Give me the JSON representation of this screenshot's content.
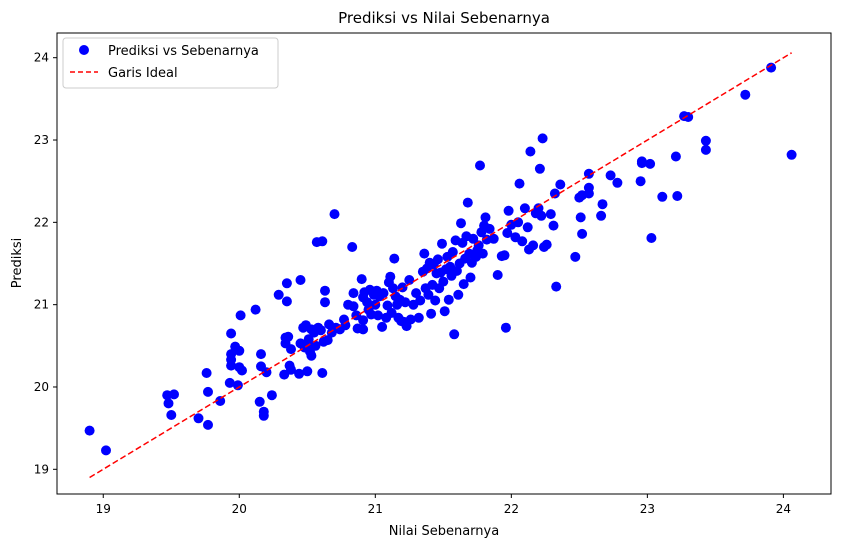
{
  "chart_data": {
    "type": "scatter",
    "title": "Prediksi vs Nilai Sebenarnya",
    "xlabel": "Nilai Sebenarnya",
    "ylabel": "Prediksi",
    "xlim": [
      18.66,
      24.35
    ],
    "ylim": [
      18.7,
      24.3
    ],
    "xticks": [
      "19",
      "20",
      "21",
      "22",
      "23",
      "24"
    ],
    "yticks": [
      "19",
      "20",
      "21",
      "22",
      "23",
      "24"
    ],
    "grid": false,
    "legend_position": "top-left",
    "series": [
      {
        "name": "Prediksi vs Sebenarnya",
        "kind": "scatter",
        "color": "#0000ff",
        "points": [
          [
            18.9,
            19.47
          ],
          [
            19.02,
            19.23
          ],
          [
            19.47,
            19.9
          ],
          [
            19.48,
            19.8
          ],
          [
            19.5,
            19.66
          ],
          [
            19.52,
            19.91
          ],
          [
            19.7,
            19.62
          ],
          [
            19.76,
            20.17
          ],
          [
            19.77,
            19.94
          ],
          [
            19.77,
            19.54
          ],
          [
            19.86,
            19.83
          ],
          [
            19.93,
            20.05
          ],
          [
            19.94,
            20.26
          ],
          [
            19.94,
            20.33
          ],
          [
            19.94,
            20.4
          ],
          [
            19.94,
            20.65
          ],
          [
            19.97,
            20.49
          ],
          [
            19.99,
            20.02
          ],
          [
            20.0,
            20.24
          ],
          [
            20.0,
            20.44
          ],
          [
            20.01,
            20.87
          ],
          [
            20.02,
            20.2
          ],
          [
            20.12,
            20.94
          ],
          [
            20.15,
            19.82
          ],
          [
            20.16,
            20.4
          ],
          [
            20.16,
            20.25
          ],
          [
            20.18,
            19.65
          ],
          [
            20.18,
            19.7
          ],
          [
            20.2,
            20.18
          ],
          [
            20.24,
            19.9
          ],
          [
            20.29,
            21.12
          ],
          [
            20.33,
            20.15
          ],
          [
            20.34,
            20.6
          ],
          [
            20.34,
            20.53
          ],
          [
            20.35,
            21.26
          ],
          [
            20.35,
            21.04
          ],
          [
            20.36,
            20.61
          ],
          [
            20.37,
            20.26
          ],
          [
            20.38,
            20.46
          ],
          [
            20.38,
            20.21
          ],
          [
            20.44,
            20.16
          ],
          [
            20.45,
            20.53
          ],
          [
            20.45,
            21.3
          ],
          [
            20.47,
            20.72
          ],
          [
            20.48,
            20.48
          ],
          [
            20.49,
            20.75
          ],
          [
            20.5,
            20.53
          ],
          [
            20.5,
            20.19
          ],
          [
            20.51,
            20.58
          ],
          [
            20.52,
            20.43
          ],
          [
            20.53,
            20.7
          ],
          [
            20.53,
            20.38
          ],
          [
            20.55,
            20.66
          ],
          [
            20.56,
            20.5
          ],
          [
            20.57,
            21.76
          ],
          [
            20.58,
            20.72
          ],
          [
            20.6,
            20.69
          ],
          [
            20.61,
            21.77
          ],
          [
            20.61,
            20.17
          ],
          [
            20.62,
            20.55
          ],
          [
            20.63,
            21.17
          ],
          [
            20.63,
            21.03
          ],
          [
            20.65,
            20.57
          ],
          [
            20.66,
            20.76
          ],
          [
            20.68,
            20.66
          ],
          [
            20.7,
            22.1
          ],
          [
            20.71,
            20.72
          ],
          [
            20.74,
            20.7
          ],
          [
            20.77,
            20.82
          ],
          [
            20.78,
            20.75
          ],
          [
            20.8,
            21.0
          ],
          [
            20.83,
            21.7
          ],
          [
            20.84,
            20.98
          ],
          [
            20.84,
            21.14
          ],
          [
            20.86,
            20.87
          ],
          [
            20.87,
            20.71
          ],
          [
            20.9,
            21.31
          ],
          [
            20.91,
            21.09
          ],
          [
            20.91,
            20.81
          ],
          [
            20.91,
            20.7
          ],
          [
            20.92,
            21.15
          ],
          [
            20.94,
            21.03
          ],
          [
            20.95,
            20.94
          ],
          [
            20.96,
            21.18
          ],
          [
            20.97,
            20.88
          ],
          [
            20.99,
            21.12
          ],
          [
            21.0,
            21.0
          ],
          [
            21.01,
            21.17
          ],
          [
            21.02,
            20.87
          ],
          [
            21.03,
            21.1
          ],
          [
            21.05,
            20.73
          ],
          [
            21.06,
            21.14
          ],
          [
            21.08,
            20.84
          ],
          [
            21.09,
            20.99
          ],
          [
            21.1,
            21.27
          ],
          [
            21.11,
            21.34
          ],
          [
            21.12,
            20.9
          ],
          [
            21.13,
            21.2
          ],
          [
            21.14,
            21.56
          ],
          [
            21.15,
            21.1
          ],
          [
            21.16,
            21.0
          ],
          [
            21.17,
            20.84
          ],
          [
            21.18,
            21.06
          ],
          [
            21.19,
            20.8
          ],
          [
            21.2,
            21.21
          ],
          [
            21.21,
            20.79
          ],
          [
            21.22,
            21.03
          ],
          [
            21.23,
            20.74
          ],
          [
            21.25,
            21.3
          ],
          [
            21.26,
            20.82
          ],
          [
            21.28,
            21.0
          ],
          [
            21.3,
            21.14
          ],
          [
            21.32,
            20.84
          ],
          [
            21.33,
            21.05
          ],
          [
            21.35,
            21.4
          ],
          [
            21.36,
            21.62
          ],
          [
            21.37,
            21.2
          ],
          [
            21.38,
            21.44
          ],
          [
            21.39,
            21.12
          ],
          [
            21.4,
            21.51
          ],
          [
            21.41,
            20.89
          ],
          [
            21.42,
            21.24
          ],
          [
            21.43,
            21.49
          ],
          [
            21.44,
            21.05
          ],
          [
            21.45,
            21.38
          ],
          [
            21.46,
            21.55
          ],
          [
            21.47,
            21.2
          ],
          [
            21.48,
            21.39
          ],
          [
            21.49,
            21.74
          ],
          [
            21.5,
            21.28
          ],
          [
            21.51,
            20.92
          ],
          [
            21.52,
            21.43
          ],
          [
            21.53,
            21.58
          ],
          [
            21.54,
            21.06
          ],
          [
            21.55,
            21.46
          ],
          [
            21.56,
            21.35
          ],
          [
            21.57,
            21.64
          ],
          [
            21.58,
            20.64
          ],
          [
            21.59,
            21.78
          ],
          [
            21.6,
            21.41
          ],
          [
            21.61,
            21.12
          ],
          [
            21.62,
            21.5
          ],
          [
            21.63,
            21.99
          ],
          [
            21.64,
            21.75
          ],
          [
            21.65,
            21.25
          ],
          [
            21.66,
            21.56
          ],
          [
            21.67,
            21.83
          ],
          [
            21.68,
            22.24
          ],
          [
            21.69,
            21.62
          ],
          [
            21.7,
            21.33
          ],
          [
            21.71,
            21.51
          ],
          [
            21.72,
            21.8
          ],
          [
            21.74,
            21.58
          ],
          [
            21.75,
            21.66
          ],
          [
            21.76,
            21.72
          ],
          [
            21.77,
            22.69
          ],
          [
            21.78,
            21.88
          ],
          [
            21.79,
            21.62
          ],
          [
            21.8,
            21.96
          ],
          [
            21.81,
            22.06
          ],
          [
            21.82,
            21.79
          ],
          [
            21.84,
            21.92
          ],
          [
            21.87,
            21.8
          ],
          [
            21.9,
            21.36
          ],
          [
            21.93,
            21.59
          ],
          [
            21.95,
            21.6
          ],
          [
            21.96,
            20.72
          ],
          [
            21.97,
            21.87
          ],
          [
            21.98,
            22.14
          ],
          [
            22.0,
            21.97
          ],
          [
            22.03,
            21.82
          ],
          [
            22.05,
            22.0
          ],
          [
            22.06,
            22.47
          ],
          [
            22.08,
            21.77
          ],
          [
            22.1,
            22.17
          ],
          [
            22.12,
            21.94
          ],
          [
            22.13,
            21.67
          ],
          [
            22.14,
            22.86
          ],
          [
            22.16,
            21.72
          ],
          [
            22.18,
            22.11
          ],
          [
            22.2,
            22.17
          ],
          [
            22.21,
            22.65
          ],
          [
            22.22,
            22.08
          ],
          [
            22.23,
            23.02
          ],
          [
            22.24,
            21.7
          ],
          [
            22.26,
            21.73
          ],
          [
            22.29,
            22.1
          ],
          [
            22.31,
            21.96
          ],
          [
            22.32,
            22.35
          ],
          [
            22.33,
            21.22
          ],
          [
            22.36,
            22.46
          ],
          [
            22.47,
            21.58
          ],
          [
            22.5,
            22.3
          ],
          [
            22.51,
            22.06
          ],
          [
            22.52,
            22.33
          ],
          [
            22.52,
            21.86
          ],
          [
            22.57,
            22.35
          ],
          [
            22.57,
            22.42
          ],
          [
            22.57,
            22.59
          ],
          [
            22.66,
            22.08
          ],
          [
            22.67,
            22.22
          ],
          [
            22.73,
            22.57
          ],
          [
            22.78,
            22.48
          ],
          [
            22.95,
            22.5
          ],
          [
            22.96,
            22.72
          ],
          [
            22.96,
            22.74
          ],
          [
            23.02,
            22.71
          ],
          [
            23.03,
            21.81
          ],
          [
            23.11,
            22.31
          ],
          [
            23.21,
            22.8
          ],
          [
            23.22,
            22.32
          ],
          [
            23.27,
            23.29
          ],
          [
            23.3,
            23.28
          ],
          [
            23.43,
            22.99
          ],
          [
            23.43,
            22.88
          ],
          [
            23.72,
            23.55
          ],
          [
            23.91,
            23.88
          ],
          [
            24.06,
            22.82
          ]
        ]
      },
      {
        "name": "Garis Ideal",
        "kind": "line",
        "style": "dashed",
        "color": "#ff0000",
        "points": [
          [
            18.9,
            18.9
          ],
          [
            24.06,
            24.06
          ]
        ]
      }
    ]
  }
}
